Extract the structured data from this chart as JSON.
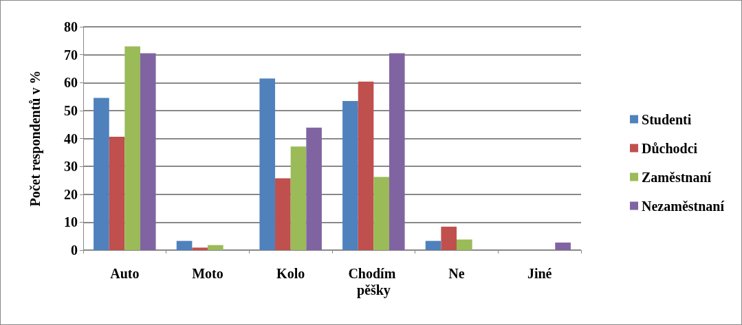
{
  "chart_data": {
    "type": "bar",
    "ylabel": "Počet respondentů v %",
    "categories": [
      "Auto",
      "Moto",
      "Kolo",
      "Chodím pěšky",
      "Ne",
      "Jiné"
    ],
    "series": [
      {
        "name": "Studenti",
        "color": "#4f81bd",
        "values": [
          54.5,
          3.3,
          61.5,
          53.4,
          3.3,
          0
        ]
      },
      {
        "name": "Důchodci",
        "color": "#c0504d",
        "values": [
          40.6,
          0.9,
          25.7,
          60.4,
          8.4,
          0
        ]
      },
      {
        "name": "Zaměstnaní",
        "color": "#9bbb59",
        "values": [
          73,
          1.8,
          37.1,
          26.2,
          3.8,
          0
        ]
      },
      {
        "name": "Nezaměstnaní",
        "color": "#8064a2",
        "values": [
          70.5,
          0,
          43.9,
          70.5,
          0,
          2.7
        ]
      }
    ],
    "ylim": [
      0,
      80
    ],
    "yticks": [
      0,
      10,
      20,
      30,
      40,
      50,
      60,
      70,
      80
    ],
    "grid": "y",
    "legend": "right"
  }
}
